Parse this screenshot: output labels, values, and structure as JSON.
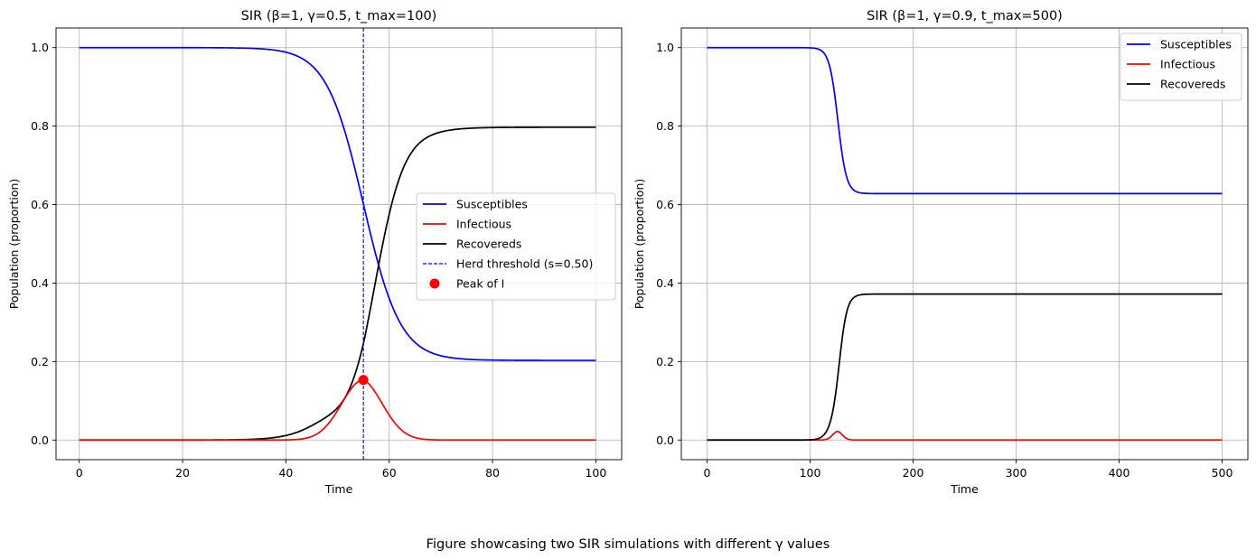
{
  "caption": "Figure showcasing two SIR simulations with different γ values",
  "chart_data": [
    {
      "type": "line",
      "title": "SIR (β=1, γ=0.5, t_max=100)",
      "xlabel": "Time",
      "ylabel": "Population (proportion)",
      "xlim": [
        -4.5,
        105
      ],
      "ylim": [
        -0.05,
        1.05
      ],
      "xticks": [
        0,
        20,
        40,
        60,
        80,
        100
      ],
      "yticks": [
        0.0,
        0.2,
        0.4,
        0.6,
        0.8,
        1.0
      ],
      "xtick_labels": [
        "0",
        "20",
        "40",
        "60",
        "80",
        "100"
      ],
      "ytick_labels": [
        "0.0",
        "0.2",
        "0.4",
        "0.6",
        "0.8",
        "1.0"
      ],
      "grid": true,
      "legend_position": "center-right",
      "model": {
        "beta": 1,
        "gamma": 0.5,
        "t_max": 100,
        "peak_time": 55,
        "S_final": 0.203,
        "R_final": 0.797,
        "I_peak": 0.153
      },
      "series": [
        {
          "name": "Susceptibles",
          "color": "#0000ff",
          "style": "solid"
        },
        {
          "name": "Infectious",
          "color": "#ff0000",
          "style": "solid"
        },
        {
          "name": "Recovereds",
          "color": "#000000",
          "style": "solid"
        }
      ],
      "vline": {
        "name": "Herd threshold (s=0.50)",
        "x": 55,
        "color": "#0000ff",
        "style": "dashed"
      },
      "marker": {
        "name": "Peak of I",
        "x": 55,
        "y": 0.153,
        "color": "#ff0000"
      }
    },
    {
      "type": "line",
      "title": "SIR (β=1, γ=0.9, t_max=500)",
      "xlabel": "Time",
      "ylabel": "Population (proportion)",
      "xlim": [
        -25,
        525
      ],
      "ylim": [
        -0.05,
        1.05
      ],
      "xticks": [
        0,
        100,
        200,
        300,
        400,
        500
      ],
      "yticks": [
        0.0,
        0.2,
        0.4,
        0.6,
        0.8,
        1.0
      ],
      "xtick_labels": [
        "0",
        "100",
        "200",
        "300",
        "400",
        "500"
      ],
      "ytick_labels": [
        "0.0",
        "0.2",
        "0.4",
        "0.6",
        "0.8",
        "1.0"
      ],
      "grid": true,
      "legend_position": "top-right",
      "model": {
        "beta": 1,
        "gamma": 0.9,
        "t_max": 500,
        "peak_time": 127,
        "S_final": 0.628,
        "R_final": 0.372,
        "I_peak": 0.022
      },
      "series": [
        {
          "name": "Susceptibles",
          "color": "#0000ff",
          "style": "solid"
        },
        {
          "name": "Infectious",
          "color": "#ff0000",
          "style": "solid"
        },
        {
          "name": "Recovereds",
          "color": "#000000",
          "style": "solid"
        }
      ]
    }
  ]
}
